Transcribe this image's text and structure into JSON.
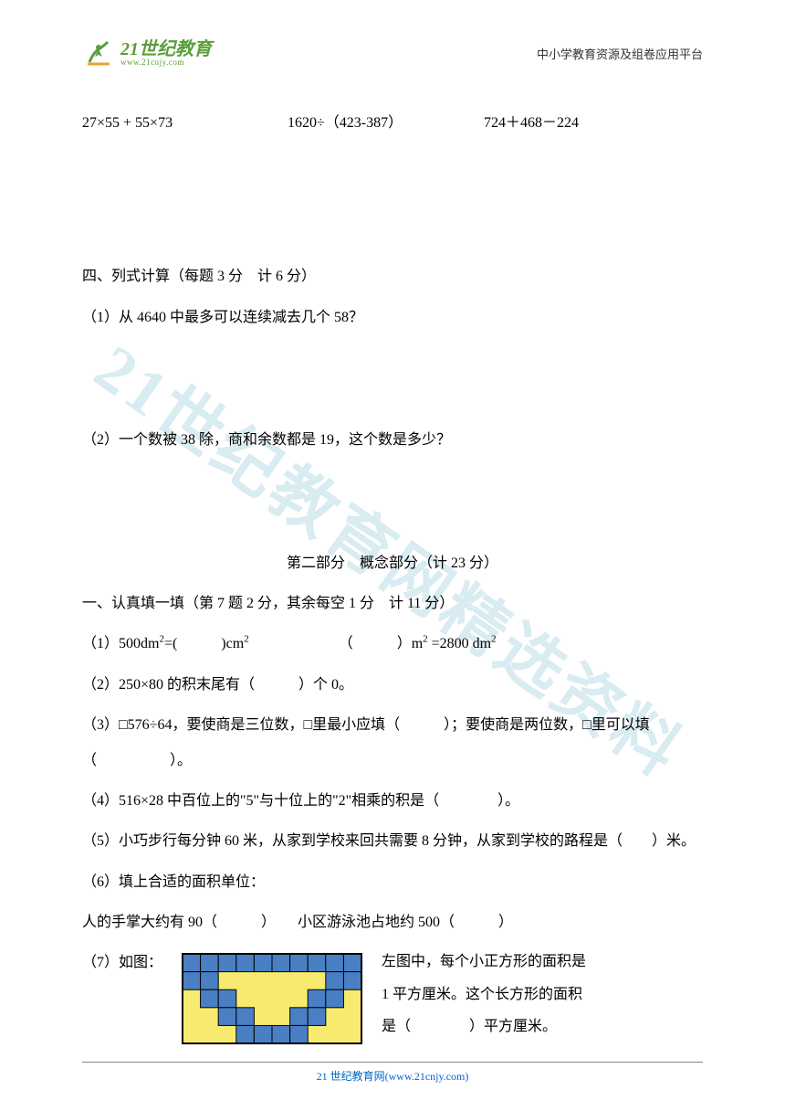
{
  "header": {
    "logo_main": "21世纪教育",
    "logo_sub": "www.21cnjy.com",
    "right_text": "中小学教育资源及组卷应用平台"
  },
  "watermark": "21世纪教育网精选资料",
  "math_problems": {
    "p1": "27×55 + 55×73",
    "p2": "1620÷（423-387）",
    "p3": "724＋468－224"
  },
  "section4": {
    "title": "四、列式计算（每题 3 分　计 6 分）",
    "q1": "（1）从 4640 中最多可以连续减去几个 58？",
    "q2": "（2）一个数被 38 除，商和余数都是 19，这个数是多少？"
  },
  "part2": {
    "title": "第二部分　概念部分（计 23 分）"
  },
  "section1": {
    "title": "一、认真填一填（第 7 题 2 分，其余每空 1 分　计 11 分）",
    "q1_a": "（1）500dm",
    "q1_b": "=(　　　)cm",
    "q1_c": "（　　　）m",
    "q1_d": " =2800 dm",
    "q2": "（2）250×80 的积末尾有（　　　）个 0。",
    "q3": "（3）□576÷64，要使商是三位数，□里最小应填（　　　）；要使商是两位数，□里可以填（　　　　　）。",
    "q4": "（4）516×28 中百位上的\"5\"与十位上的\"2\"相乘的积是（　　　　）。",
    "q5": "（5）小巧步行每分钟 60 米，从家到学校来回共需要 8 分钟，从家到学校的路程是（　　）米。",
    "q6_title": "（6）填上合适的面积单位：",
    "q6_content": "人的手掌大约有 90（　　　）　　小区游泳池占地约 500（　　　）",
    "q7_label": "（7）如图：",
    "q7_text1": "左图中，每个小正方形的面积是",
    "q7_text2": "1 平方厘米。这个长方形的面积",
    "q7_text3": "是（　　　　）平方厘米。"
  },
  "figure": {
    "grid_cols": 10,
    "grid_rows": 5,
    "cell_size": 20,
    "border_color": "#000000",
    "outer_fill": "#4a7fc4",
    "inner_fill": "#f8ea6e",
    "blue_cells": [
      [
        0,
        0
      ],
      [
        0,
        1
      ],
      [
        0,
        2
      ],
      [
        0,
        3
      ],
      [
        0,
        4
      ],
      [
        0,
        5
      ],
      [
        0,
        6
      ],
      [
        0,
        7
      ],
      [
        0,
        8
      ],
      [
        0,
        9
      ],
      [
        1,
        0
      ],
      [
        1,
        1
      ],
      [
        1,
        8
      ],
      [
        1,
        9
      ],
      [
        2,
        1
      ],
      [
        2,
        2
      ],
      [
        2,
        7
      ],
      [
        2,
        8
      ],
      [
        3,
        2
      ],
      [
        3,
        3
      ],
      [
        3,
        6
      ],
      [
        3,
        7
      ],
      [
        4,
        3
      ],
      [
        4,
        4
      ],
      [
        4,
        5
      ],
      [
        4,
        6
      ]
    ]
  },
  "footer": {
    "text": "21 世纪教育网(www.21cnjy.com)"
  },
  "colors": {
    "text": "#000000",
    "logo_green": "#5a9e3c",
    "footer_link": "#0066cc",
    "watermark": "rgba(100, 180, 200, 0.25)"
  }
}
